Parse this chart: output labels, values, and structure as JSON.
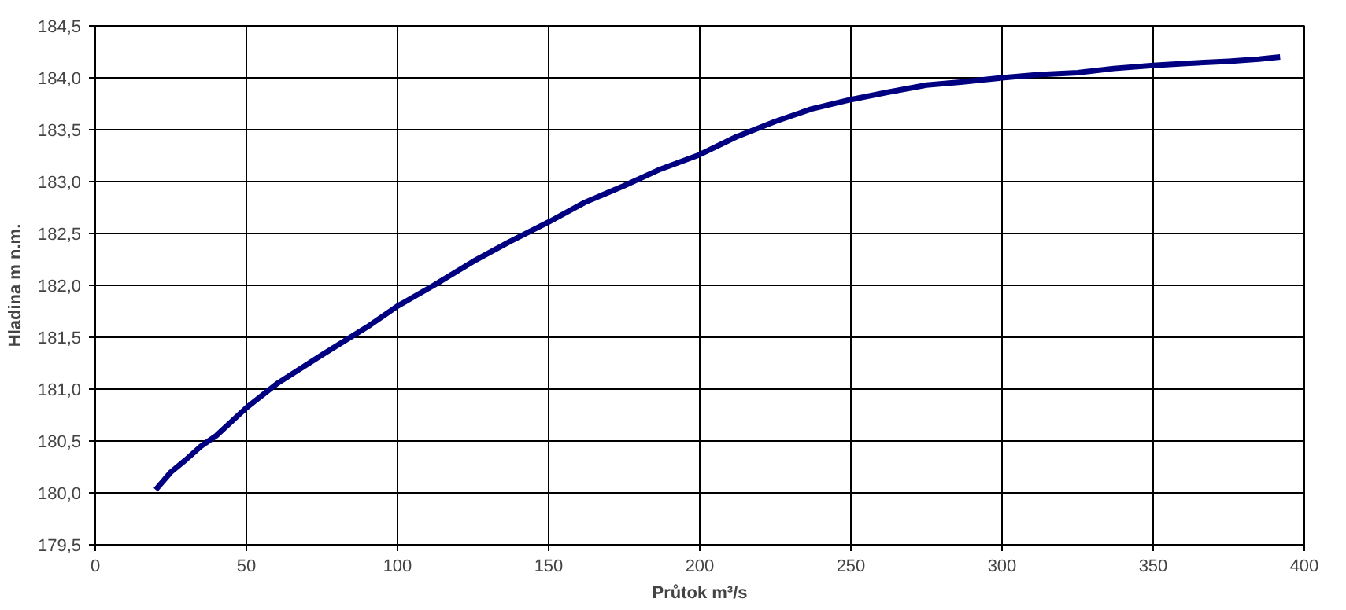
{
  "chart_data": {
    "type": "line",
    "xlabel": "Průtok m³/s",
    "ylabel": "Hladina m n.m.",
    "series": [
      {
        "color": "#000080",
        "x": [
          20,
          25,
          30,
          35,
          40,
          50,
          60,
          75,
          90,
          100,
          112,
          125,
          137,
          150,
          162,
          175,
          187,
          200,
          212,
          225,
          237,
          250,
          262,
          275,
          287,
          300,
          312,
          325,
          337,
          350,
          362,
          375,
          385,
          392
        ],
        "values": [
          180.03,
          180.2,
          180.32,
          180.45,
          180.55,
          180.82,
          181.05,
          181.33,
          181.6,
          181.8,
          182.0,
          182.23,
          182.42,
          182.61,
          182.8,
          182.96,
          183.12,
          183.26,
          183.43,
          183.58,
          183.7,
          183.79,
          183.86,
          183.93,
          183.96,
          184.0,
          184.03,
          184.05,
          184.09,
          184.12,
          184.14,
          184.16,
          184.18,
          184.2
        ]
      }
    ],
    "xlim": [
      0,
      400
    ],
    "xticks": [
      0,
      50,
      100,
      150,
      200,
      250,
      300,
      350,
      400
    ],
    "ylim": [
      179.5,
      184.5
    ],
    "yticks": [
      {
        "value": 179.5,
        "label": "179,5"
      },
      {
        "value": 180,
        "label": "180,0"
      },
      {
        "value": 180.5,
        "label": "180,5"
      },
      {
        "value": 181,
        "label": "181,0"
      },
      {
        "value": 181.5,
        "label": "181,5"
      },
      {
        "value": 182,
        "label": "182,0"
      },
      {
        "value": 182.5,
        "label": "182,5"
      },
      {
        "value": 183,
        "label": "183,0"
      },
      {
        "value": 183.5,
        "label": "183,5"
      },
      {
        "value": 184,
        "label": "184,0"
      },
      {
        "value": 184.5,
        "label": "184,5"
      }
    ],
    "grid": true,
    "marker": "none",
    "line_style": "solid"
  }
}
